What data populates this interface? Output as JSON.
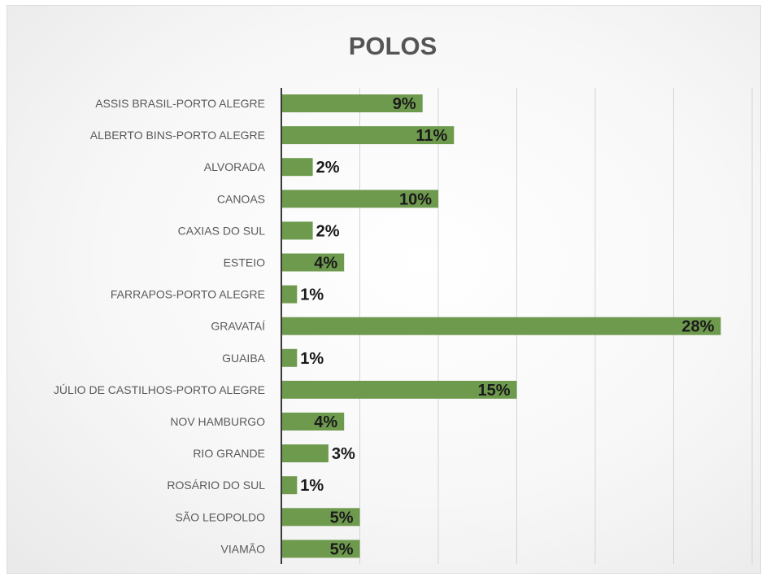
{
  "chart_data": {
    "type": "bar",
    "orientation": "horizontal",
    "title": "POLOS",
    "categories": [
      "ASSIS BRASIL-PORTO ALEGRE",
      "ALBERTO BINS-PORTO ALEGRE",
      "ALVORADA",
      "CANOAS",
      "CAXIAS DO SUL",
      "ESTEIO",
      "FARRAPOS-PORTO ALEGRE",
      "GRAVATAÍ",
      "GUAIBA",
      "JÚLIO DE CASTILHOS-PORTO ALEGRE",
      "NOV HAMBURGO",
      "RIO GRANDE",
      "ROSÁRIO DO SUL",
      "SÃO LEOPOLDO",
      "VIAMÃO"
    ],
    "values": [
      9,
      11,
      2,
      10,
      2,
      4,
      1,
      28,
      1,
      15,
      4,
      3,
      1,
      5,
      5
    ],
    "data_labels": [
      "9%",
      "11%",
      "2%",
      "10%",
      "2%",
      "4%",
      "1%",
      "28%",
      "1%",
      "15%",
      "4%",
      "3%",
      "1%",
      "5%",
      "5%"
    ],
    "xlim": [
      0,
      30
    ],
    "grid": true,
    "bar_color": "#6e9a4e",
    "xlabel": "",
    "ylabel": ""
  }
}
